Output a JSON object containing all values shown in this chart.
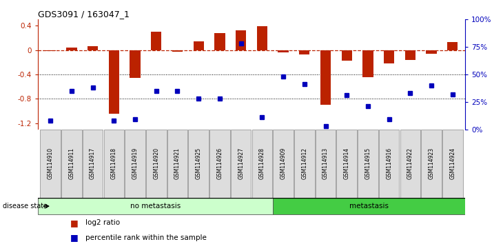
{
  "title": "GDS3091 / 163047_1",
  "samples": [
    "GSM114910",
    "GSM114911",
    "GSM114917",
    "GSM114918",
    "GSM114919",
    "GSM114920",
    "GSM114921",
    "GSM114925",
    "GSM114926",
    "GSM114927",
    "GSM114928",
    "GSM114909",
    "GSM114912",
    "GSM114913",
    "GSM114914",
    "GSM114915",
    "GSM114916",
    "GSM114922",
    "GSM114923",
    "GSM114924"
  ],
  "log2_ratio": [
    -0.02,
    0.04,
    0.06,
    -1.05,
    -0.46,
    0.3,
    -0.03,
    0.14,
    0.28,
    0.32,
    0.39,
    -0.04,
    -0.07,
    -0.9,
    -0.18,
    -0.45,
    -0.22,
    -0.16,
    -0.06,
    0.13
  ],
  "percentile": [
    8,
    35,
    38,
    8,
    9,
    35,
    35,
    28,
    28,
    78,
    11,
    48,
    41,
    3,
    31,
    21,
    9,
    33,
    40,
    32
  ],
  "no_metastasis_count": 11,
  "metastasis_count": 9,
  "bar_color": "#BB2200",
  "dot_color": "#0000BB",
  "ylim_left": [
    -1.3,
    0.5
  ],
  "ylim_right": [
    0,
    100
  ],
  "left_ticks": [
    0.4,
    0.0,
    -0.4,
    -0.8,
    -1.2
  ],
  "left_tick_labels": [
    "0.4",
    "0",
    "-0.4",
    "-0.8",
    "-1.2"
  ],
  "right_ticks": [
    100,
    75,
    50,
    25,
    0
  ],
  "right_tick_labels": [
    "100%",
    "75%",
    "50%",
    "25%",
    "0%"
  ],
  "hline_dotted": [
    -0.4,
    -0.8
  ],
  "no_meta_color": "#ccffcc",
  "meta_color": "#44cc44",
  "bar_edge_color": "#333333"
}
